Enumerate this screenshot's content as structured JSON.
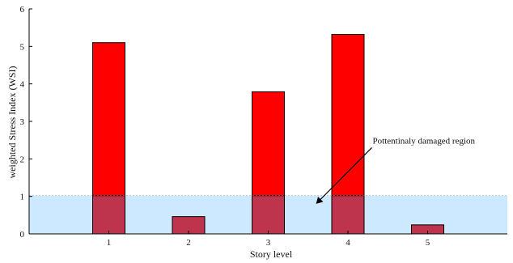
{
  "chart_data": {
    "type": "bar",
    "categories": [
      "1",
      "2",
      "3",
      "4",
      "5"
    ],
    "values": [
      5.1,
      0.46,
      3.79,
      5.32,
      0.24
    ],
    "title": "",
    "xlabel": "Story level",
    "ylabel": "weighted Stress Index (WSI)",
    "ylim": [
      0,
      6
    ],
    "yticks": [
      "0",
      "1",
      "2",
      "3",
      "4",
      "5",
      "6"
    ],
    "xlim": [
      0,
      6
    ],
    "grid": false,
    "legend": "none",
    "threshold": 1.02,
    "annotations": [
      {
        "text": "Pottentinaly damaged region",
        "arrow_from": [
          4.3,
          2.3
        ],
        "arrow_to": [
          3.6,
          0.8
        ]
      }
    ],
    "colors": {
      "bar": "#ff0000",
      "bar_stroke": "#000000",
      "region": "#bfe3ff",
      "overlap": "#bd344c",
      "axis": "#000000"
    }
  }
}
